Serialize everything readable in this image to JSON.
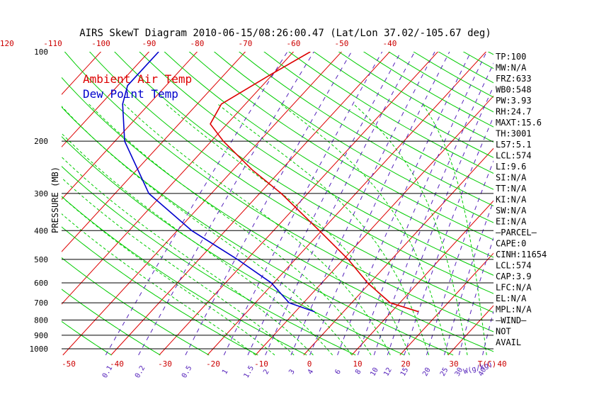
{
  "title": "AIRS SkewT Diagram 2010-06-15/08:26:00.47 (Lat/Lon 37.02/-105.67 deg)",
  "legend": [
    {
      "label": "Ambient Air Temp",
      "color": "#dd0000"
    },
    {
      "label": "Dew Point Temp",
      "color": "#0000cc"
    }
  ],
  "colors": {
    "isobar": "#000000",
    "isotherm": "#dd0000",
    "dry_adiabat": "#00cc00",
    "moist_adiabat": "#00cc00",
    "mixing_ratio": "#5522bb",
    "temp_profile": "#dd0000",
    "dewpoint_profile": "#0000cc",
    "axis_labels": "#cc0000",
    "mixing_labels": "#5522bb"
  },
  "chart_data": {
    "type": "line",
    "ylabel": "PRESSURE (MB)",
    "xlabel_unit": "T(C)",
    "mixing_ratio_unit": "W(g/kg)",
    "y_scale": "log",
    "ylim": [
      1050,
      100
    ],
    "pressure_ticks": [
      100,
      200,
      300,
      400,
      500,
      600,
      700,
      800,
      900,
      1000
    ],
    "top_temp_ticks": [
      -120,
      -110,
      -100,
      -90,
      -80,
      -70,
      -60,
      -50,
      -40
    ],
    "bottom_temp_ticks": [
      -50,
      -40,
      -30,
      -20,
      -10,
      0,
      10,
      20,
      30,
      40
    ],
    "mixing_ratio_ticks": [
      "0.1",
      "0.2",
      "0.5",
      "1",
      "1.5",
      "2",
      "3",
      "4",
      "6",
      "8",
      "10",
      "12",
      "15",
      "20",
      "25",
      "30",
      "40"
    ],
    "series": [
      {
        "name": "Ambient Air Temp",
        "points": [
          {
            "p": 100,
            "t": -56.5
          },
          {
            "p": 120,
            "t": -60.5
          },
          {
            "p": 150,
            "t": -65.0
          },
          {
            "p": 175,
            "t": -63.5
          },
          {
            "p": 200,
            "t": -57.5
          },
          {
            "p": 250,
            "t": -46.0
          },
          {
            "p": 300,
            "t": -35.5
          },
          {
            "p": 400,
            "t": -20.5
          },
          {
            "p": 500,
            "t": -9.0
          },
          {
            "p": 600,
            "t": -0.5
          },
          {
            "p": 700,
            "t": 8.0
          },
          {
            "p": 750,
            "t": 15.6
          }
        ]
      },
      {
        "name": "Dew Point Temp",
        "points": [
          {
            "p": 100,
            "t": -88.0
          },
          {
            "p": 130,
            "t": -88.0
          },
          {
            "p": 150,
            "t": -85.5
          },
          {
            "p": 200,
            "t": -78.0
          },
          {
            "p": 300,
            "t": -63.0
          },
          {
            "p": 400,
            "t": -47.0
          },
          {
            "p": 500,
            "t": -32.0
          },
          {
            "p": 600,
            "t": -20.5
          },
          {
            "p": 700,
            "t": -13.0
          },
          {
            "p": 750,
            "t": -6.0
          }
        ]
      }
    ]
  },
  "indices": [
    "TP:100",
    "MW:N/A",
    "FRZ:633",
    "WB0:548",
    "PW:3.93",
    "RH:24.7",
    "MAXT:15.6",
    "TH:3001",
    "L57:5.1",
    "LCL:574",
    "LI:9.6",
    "SI:N/A",
    "TT:N/A",
    "KI:N/A",
    "SW:N/A",
    "EI:N/A",
    "—PARCEL—",
    "CAPE:0",
    "CINH:11654",
    "LCL:574",
    "CAP:3.9",
    "LFC:N/A",
    "EL:N/A",
    "MPL:N/A",
    "—WIND—",
    "NOT",
    "AVAIL"
  ]
}
